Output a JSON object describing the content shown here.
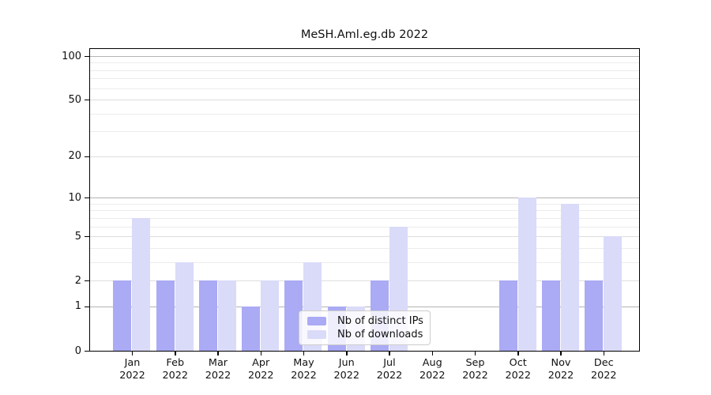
{
  "chart_data": {
    "type": "bar",
    "title": "MeSH.Aml.eg.db 2022",
    "year_label": "2022",
    "categories": [
      "Jan",
      "Feb",
      "Mar",
      "Apr",
      "May",
      "Jun",
      "Jul",
      "Aug",
      "Sep",
      "Oct",
      "Nov",
      "Dec"
    ],
    "series": [
      {
        "name": "Nb of distinct IPs",
        "color": "#abaaf5",
        "values": [
          2,
          2,
          2,
          1,
          2,
          1,
          2,
          0,
          0,
          2,
          2,
          2
        ]
      },
      {
        "name": "Nb of downloads",
        "color": "#dadaf9",
        "values": [
          7,
          3,
          2,
          2,
          3,
          1,
          6,
          0,
          0,
          10,
          9,
          5
        ]
      }
    ],
    "yscale": "log1p",
    "ylim": [
      0,
      100
    ],
    "yticks": [
      0,
      1,
      2,
      5,
      10,
      20,
      50,
      100
    ],
    "grid": {
      "major_values": [
        1,
        10,
        100
      ],
      "mid_values": [
        2,
        5,
        20,
        50
      ],
      "minor_values": [
        3,
        4,
        6,
        7,
        8,
        9,
        30,
        40,
        60,
        70,
        80,
        90
      ],
      "major_color": "#b3b3b3",
      "mid_color": "#dddddd",
      "minor_color": "#ececec"
    },
    "legend_position": "inside-bottom-center"
  }
}
